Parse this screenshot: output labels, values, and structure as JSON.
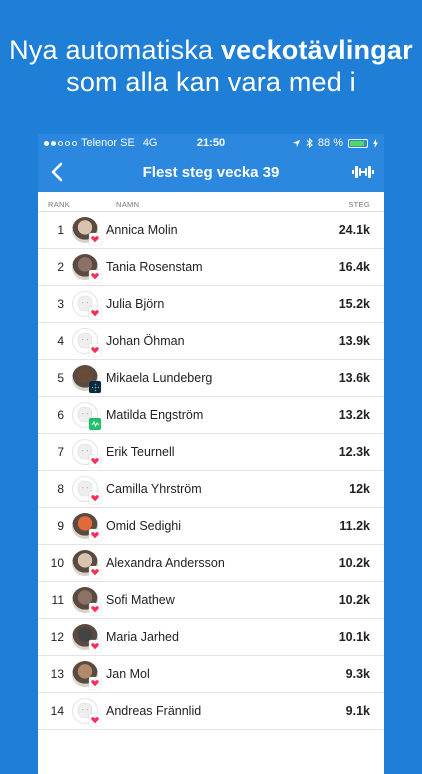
{
  "headline": {
    "line1_prefix": "Nya automatiska ",
    "line1_bold": "veckotävlingar",
    "line2": "som alla kan vara med i"
  },
  "status": {
    "carrier": "Telenor SE",
    "network": "4G",
    "time": "21:50",
    "battery": "88 %"
  },
  "nav": {
    "title": "Flest steg vecka 39"
  },
  "columns": {
    "rank": "RANK",
    "name": "NAMN",
    "steps": "STEG"
  },
  "rows": [
    {
      "rank": "1",
      "name": "Annica Molin",
      "steps": "24.1k",
      "avatar": "photo",
      "badge": "heart"
    },
    {
      "rank": "2",
      "name": "Tania Rosenstam",
      "steps": "16.4k",
      "avatar": "photo",
      "badge": "heart"
    },
    {
      "rank": "3",
      "name": "Julia Björn",
      "steps": "15.2k",
      "avatar": "default",
      "badge": "heart"
    },
    {
      "rank": "4",
      "name": "Johan Öhman",
      "steps": "13.9k",
      "avatar": "default",
      "badge": "heart"
    },
    {
      "rank": "5",
      "name": "Mikaela Lundeberg",
      "steps": "13.6k",
      "avatar": "photo",
      "badge": "fitbit"
    },
    {
      "rank": "6",
      "name": "Matilda Engström",
      "steps": "13.2k",
      "avatar": "default",
      "badge": "green"
    },
    {
      "rank": "7",
      "name": "Erik Teurnell",
      "steps": "12.3k",
      "avatar": "default",
      "badge": "heart"
    },
    {
      "rank": "8",
      "name": "Camilla Yhrström",
      "steps": "12k",
      "avatar": "default",
      "badge": "heart"
    },
    {
      "rank": "9",
      "name": "Omid Sedighi",
      "steps": "11.2k",
      "avatar": "photo",
      "badge": "heart"
    },
    {
      "rank": "10",
      "name": "Alexandra Andersson",
      "steps": "10.2k",
      "avatar": "photo",
      "badge": "heart"
    },
    {
      "rank": "11",
      "name": "Sofi Mathew",
      "steps": "10.2k",
      "avatar": "photo",
      "badge": "heart"
    },
    {
      "rank": "12",
      "name": "Maria Jarhed",
      "steps": "10.1k",
      "avatar": "photo",
      "badge": "heart"
    },
    {
      "rank": "13",
      "name": "Jan Mol",
      "steps": "9.3k",
      "avatar": "photo",
      "badge": "heart"
    },
    {
      "rank": "14",
      "name": "Andreas Frännlid",
      "steps": "9.1k",
      "avatar": "default",
      "badge": "heart"
    }
  ],
  "colors": {
    "background": "#1f7fd6",
    "nav": "#2b88de",
    "heart": "#ff2d55",
    "green": "#21c16b"
  }
}
